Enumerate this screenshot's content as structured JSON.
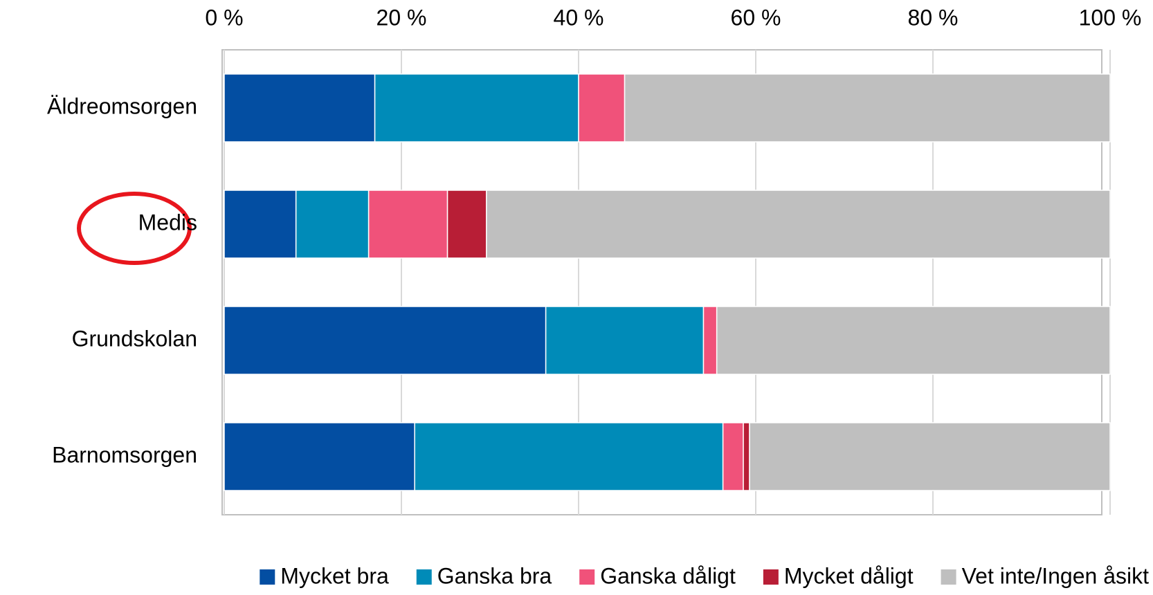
{
  "chart_data": {
    "type": "stacked-bar-horizontal",
    "categories": [
      "Äldreomsorgen",
      "Medis",
      "Grundskolan",
      "Barnomsorgen"
    ],
    "series": [
      {
        "name": "Mycket bra",
        "color": "#034ea2",
        "values": [
          17.0,
          8.1,
          36.3,
          21.5
        ]
      },
      {
        "name": "Ganska bra",
        "color": "#008bb8",
        "values": [
          23.0,
          8.2,
          17.8,
          34.8
        ]
      },
      {
        "name": "Ganska dåligt",
        "color": "#f0527a",
        "values": [
          5.2,
          8.9,
          1.5,
          2.3
        ]
      },
      {
        "name": "Mycket dåligt",
        "color": "#b81e36",
        "values": [
          0,
          4.4,
          0,
          0.7
        ]
      },
      {
        "name": "Vet inte/Ingen åsikt",
        "color": "#bfbfbf",
        "values": [
          54.8,
          70.4,
          44.4,
          40.7
        ]
      }
    ],
    "xlim": [
      0,
      100
    ],
    "xticks": [
      {
        "value": 0,
        "label": "0 %"
      },
      {
        "value": 20,
        "label": "20 %"
      },
      {
        "value": 40,
        "label": "40 %"
      },
      {
        "value": 60,
        "label": "60 %"
      },
      {
        "value": 80,
        "label": "80 %"
      },
      {
        "value": 100,
        "label": "100 %"
      }
    ],
    "grid": true,
    "legend": "bottom"
  }
}
